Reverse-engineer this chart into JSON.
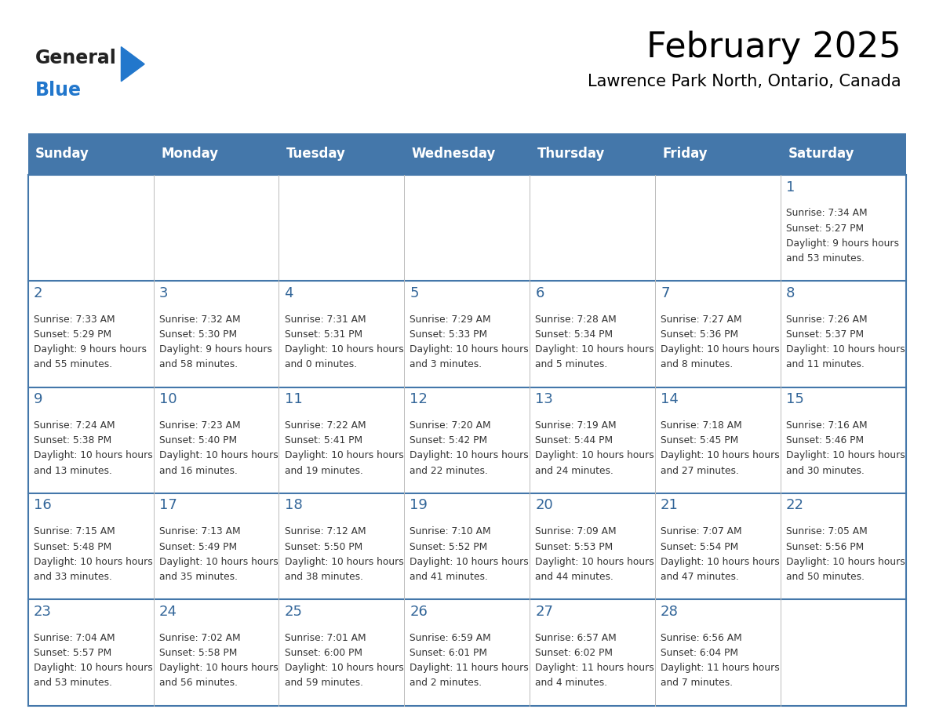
{
  "title": "February 2025",
  "subtitle": "Lawrence Park North, Ontario, Canada",
  "days_of_week": [
    "Sunday",
    "Monday",
    "Tuesday",
    "Wednesday",
    "Thursday",
    "Friday",
    "Saturday"
  ],
  "header_bg": "#4477aa",
  "header_text": "#ffffff",
  "cell_border": "#4477aa",
  "day_number_color": "#336699",
  "text_color": "#333333",
  "logo_general_color": "#222222",
  "logo_blue_color": "#2277cc",
  "weeks": [
    [
      null,
      null,
      null,
      null,
      null,
      null,
      1
    ],
    [
      2,
      3,
      4,
      5,
      6,
      7,
      8
    ],
    [
      9,
      10,
      11,
      12,
      13,
      14,
      15
    ],
    [
      16,
      17,
      18,
      19,
      20,
      21,
      22
    ],
    [
      23,
      24,
      25,
      26,
      27,
      28,
      null
    ]
  ],
  "cell_data": {
    "1": {
      "sunrise": "7:34 AM",
      "sunset": "5:27 PM",
      "daylight": "9 hours and 53 minutes"
    },
    "2": {
      "sunrise": "7:33 AM",
      "sunset": "5:29 PM",
      "daylight": "9 hours and 55 minutes"
    },
    "3": {
      "sunrise": "7:32 AM",
      "sunset": "5:30 PM",
      "daylight": "9 hours and 58 minutes"
    },
    "4": {
      "sunrise": "7:31 AM",
      "sunset": "5:31 PM",
      "daylight": "10 hours and 0 minutes"
    },
    "5": {
      "sunrise": "7:29 AM",
      "sunset": "5:33 PM",
      "daylight": "10 hours and 3 minutes"
    },
    "6": {
      "sunrise": "7:28 AM",
      "sunset": "5:34 PM",
      "daylight": "10 hours and 5 minutes"
    },
    "7": {
      "sunrise": "7:27 AM",
      "sunset": "5:36 PM",
      "daylight": "10 hours and 8 minutes"
    },
    "8": {
      "sunrise": "7:26 AM",
      "sunset": "5:37 PM",
      "daylight": "10 hours and 11 minutes"
    },
    "9": {
      "sunrise": "7:24 AM",
      "sunset": "5:38 PM",
      "daylight": "10 hours and 13 minutes"
    },
    "10": {
      "sunrise": "7:23 AM",
      "sunset": "5:40 PM",
      "daylight": "10 hours and 16 minutes"
    },
    "11": {
      "sunrise": "7:22 AM",
      "sunset": "5:41 PM",
      "daylight": "10 hours and 19 minutes"
    },
    "12": {
      "sunrise": "7:20 AM",
      "sunset": "5:42 PM",
      "daylight": "10 hours and 22 minutes"
    },
    "13": {
      "sunrise": "7:19 AM",
      "sunset": "5:44 PM",
      "daylight": "10 hours and 24 minutes"
    },
    "14": {
      "sunrise": "7:18 AM",
      "sunset": "5:45 PM",
      "daylight": "10 hours and 27 minutes"
    },
    "15": {
      "sunrise": "7:16 AM",
      "sunset": "5:46 PM",
      "daylight": "10 hours and 30 minutes"
    },
    "16": {
      "sunrise": "7:15 AM",
      "sunset": "5:48 PM",
      "daylight": "10 hours and 33 minutes"
    },
    "17": {
      "sunrise": "7:13 AM",
      "sunset": "5:49 PM",
      "daylight": "10 hours and 35 minutes"
    },
    "18": {
      "sunrise": "7:12 AM",
      "sunset": "5:50 PM",
      "daylight": "10 hours and 38 minutes"
    },
    "19": {
      "sunrise": "7:10 AM",
      "sunset": "5:52 PM",
      "daylight": "10 hours and 41 minutes"
    },
    "20": {
      "sunrise": "7:09 AM",
      "sunset": "5:53 PM",
      "daylight": "10 hours and 44 minutes"
    },
    "21": {
      "sunrise": "7:07 AM",
      "sunset": "5:54 PM",
      "daylight": "10 hours and 47 minutes"
    },
    "22": {
      "sunrise": "7:05 AM",
      "sunset": "5:56 PM",
      "daylight": "10 hours and 50 minutes"
    },
    "23": {
      "sunrise": "7:04 AM",
      "sunset": "5:57 PM",
      "daylight": "10 hours and 53 minutes"
    },
    "24": {
      "sunrise": "7:02 AM",
      "sunset": "5:58 PM",
      "daylight": "10 hours and 56 minutes"
    },
    "25": {
      "sunrise": "7:01 AM",
      "sunset": "6:00 PM",
      "daylight": "10 hours and 59 minutes"
    },
    "26": {
      "sunrise": "6:59 AM",
      "sunset": "6:01 PM",
      "daylight": "11 hours and 2 minutes"
    },
    "27": {
      "sunrise": "6:57 AM",
      "sunset": "6:02 PM",
      "daylight": "11 hours and 4 minutes"
    },
    "28": {
      "sunrise": "6:56 AM",
      "sunset": "6:04 PM",
      "daylight": "11 hours and 7 minutes"
    }
  },
  "figsize": [
    11.88,
    9.18
  ],
  "dpi": 100
}
